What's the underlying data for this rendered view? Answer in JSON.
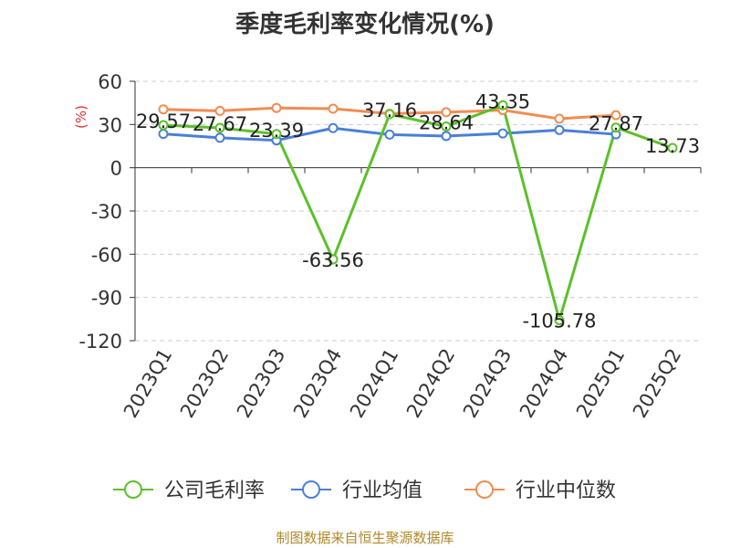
{
  "title": "季度毛利率变化情况(%)",
  "source": "制图数据来自恒生聚源数据库",
  "colors": {
    "gross_margin": "#5cc02a",
    "industry_mean": "#4a7fd8",
    "industry_median": "#f28c52",
    "axis": "#333333",
    "grid": "#cccccc",
    "unit": "#e03030"
  },
  "chart_data": {
    "type": "line",
    "title": "季度毛利率变化情况(%)",
    "ylabel": "(%)",
    "xlabel": "",
    "ylim": [
      -120,
      60
    ],
    "yticks": [
      60,
      30,
      0,
      -30,
      -60,
      -90,
      -120
    ],
    "grid": "horizontal dashed",
    "legend_position": "bottom",
    "categories": [
      "2023Q1",
      "2023Q2",
      "2023Q3",
      "2023Q4",
      "2024Q1",
      "2024Q2",
      "2024Q3",
      "2024Q4",
      "2025Q1",
      "2025Q2"
    ],
    "series": [
      {
        "name": "公司毛利率",
        "color": "#5cc02a",
        "values": [
          29.57,
          27.67,
          23.39,
          -63.56,
          37.16,
          28.64,
          43.35,
          -105.78,
          27.87,
          13.73
        ],
        "labels": [
          "29.57",
          "27.67",
          "23.39",
          "-63.56",
          "37.16",
          "28.64",
          "43.35",
          "-105.78",
          "27.87",
          "13.73"
        ]
      },
      {
        "name": "行业均值",
        "color": "#4a7fd8",
        "values": [
          23.5,
          20.8,
          19.0,
          27.5,
          23.0,
          22.0,
          23.8,
          26.2,
          23.2,
          null
        ]
      },
      {
        "name": "行业中位数",
        "color": "#f28c52",
        "values": [
          40.5,
          39.5,
          41.5,
          41.0,
          37.5,
          38.5,
          40.0,
          34.0,
          36.5,
          null
        ]
      }
    ]
  }
}
